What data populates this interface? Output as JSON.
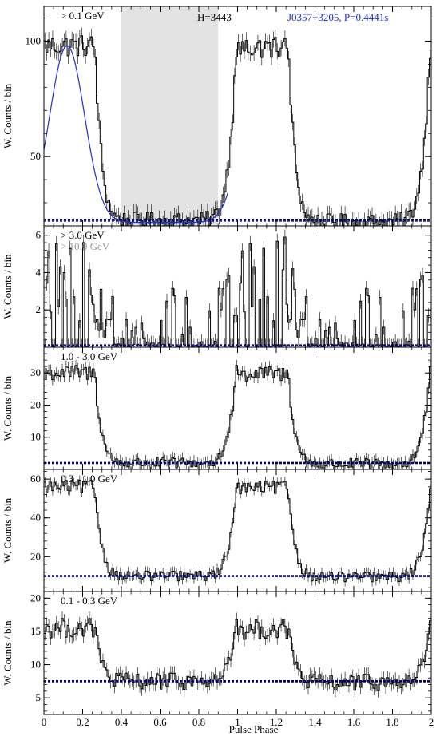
{
  "x_axis": {
    "label": "Pulse Phase",
    "range": [
      0,
      2
    ],
    "ticks": [
      0,
      0.2,
      0.4,
      0.6,
      0.8,
      1,
      1.2,
      1.4,
      1.6,
      1.8,
      2
    ],
    "tick_labels": [
      "0",
      "0.2",
      "0.4",
      "0.6",
      "0.8",
      "1",
      "1.2",
      "1.4",
      "1.6",
      "1.8",
      "2"
    ]
  },
  "colors": {
    "histogram": "#000000",
    "fit": "#1f2fd0",
    "background_line": "#000080",
    "offpulse": "#e3e3e3",
    "energy_gray": "#9a9a9a"
  },
  "chart_data": [
    {
      "type": "line",
      "energy_label": "> 0.1 GeV",
      "ylabel": "W. Counts / bin",
      "ylim": [
        20,
        115
      ],
      "yticks": [
        50,
        100
      ],
      "ytick_labels": [
        "50",
        "100"
      ],
      "annotations": {
        "h_test": "H=3443",
        "pulsar": "J0357+3205, P=0.4441s"
      },
      "offpulse_region": [
        0.4,
        0.9
      ],
      "background_level": 22.5,
      "peak_phases": [
        0.12,
        1.12
      ],
      "peak_value": 98,
      "noise_amplitude": 5,
      "has_fit": true
    },
    {
      "type": "line",
      "energy_label": "> 3.0 GeV",
      "energy_label_secondary": "> 10.0 GeV",
      "ylabel": "W. Counts / bin",
      "ylim": [
        0,
        6.5
      ],
      "yticks": [
        2,
        4,
        6
      ],
      "ytick_labels": [
        "2",
        "4",
        "6"
      ],
      "background_level": 0.1,
      "peak_phases": [
        0.12,
        1.12
      ],
      "peak_value": 2.2,
      "noise_amplitude": 1.2,
      "spiky": true
    },
    {
      "type": "line",
      "energy_label": "1.0 - 3.0 GeV",
      "ylabel": "W. Counts / bin",
      "ylim": [
        0,
        38
      ],
      "yticks": [
        10,
        20,
        30
      ],
      "ytick_labels": [
        "10",
        "20",
        "30"
      ],
      "background_level": 2.0,
      "peak_phases": [
        0.12,
        1.12
      ],
      "peak_value": 30,
      "noise_amplitude": 2.5
    },
    {
      "type": "line",
      "energy_label": "0.3 - 1.0 GeV",
      "ylabel": "W. Counts / bin",
      "ylim": [
        2,
        65
      ],
      "yticks": [
        20,
        40,
        60
      ],
      "ytick_labels": [
        "20",
        "40",
        "60"
      ],
      "background_level": 10,
      "peak_phases": [
        0.12,
        1.12
      ],
      "peak_value": 56,
      "noise_amplitude": 3.5
    },
    {
      "type": "line",
      "energy_label": "0.1 - 0.3 GeV",
      "ylabel": "W. Counts / bin",
      "ylim": [
        2.5,
        21
      ],
      "yticks": [
        5,
        10,
        15,
        20
      ],
      "ytick_labels": [
        "5",
        "10",
        "15",
        "20"
      ],
      "background_level": 7.5,
      "peak_phases": [
        0.12,
        1.12
      ],
      "peak_value": 15.5,
      "noise_amplitude": 1.5
    }
  ]
}
